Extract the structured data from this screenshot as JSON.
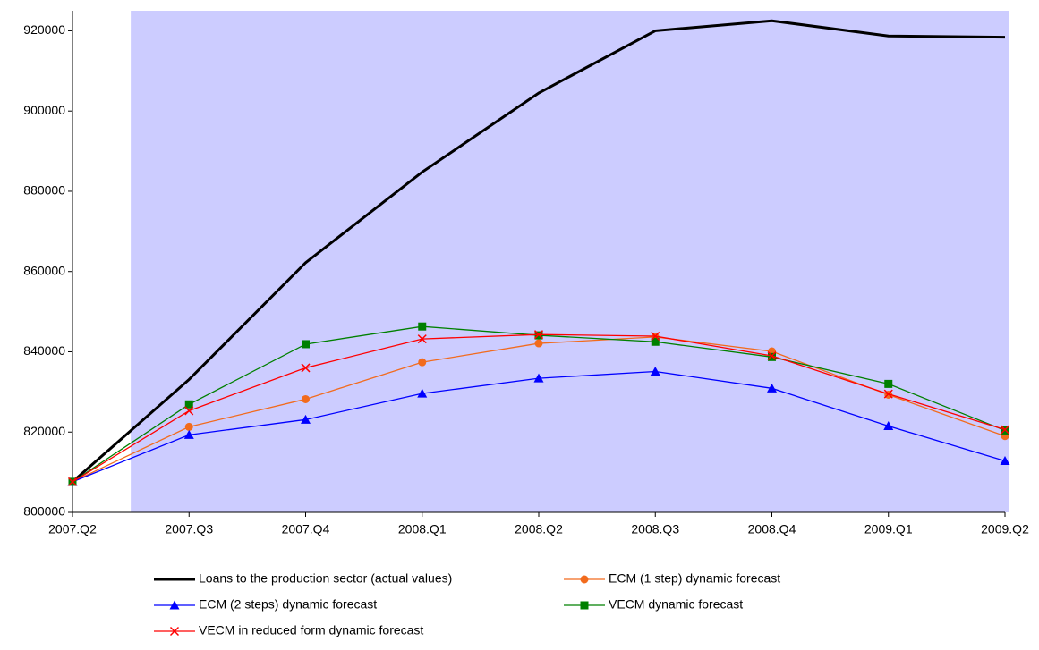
{
  "chart_data": {
    "type": "line",
    "categories": [
      "2007.Q2",
      "2007.Q3",
      "2007.Q4",
      "2008.Q1",
      "2008.Q2",
      "2008.Q3",
      "2008.Q4",
      "2009.Q1",
      "2009.Q2"
    ],
    "ylim": [
      800000,
      925000
    ],
    "yticks": [
      800000,
      820000,
      840000,
      860000,
      880000,
      900000,
      920000
    ],
    "background": "#ccccff",
    "series": [
      {
        "name": "Loans to the production sector (actual values)",
        "color": "#000000",
        "marker": "none",
        "width": 3,
        "values": [
          807600,
          833100,
          862200,
          884800,
          904500,
          920000,
          922500,
          918700,
          918400
        ]
      },
      {
        "name": "ECM (1 step) dynamic forecast",
        "color": "#f26b1d",
        "marker": "circle",
        "width": 1.3,
        "values": [
          807600,
          821300,
          828200,
          837400,
          842100,
          843700,
          840100,
          829300,
          819000
        ]
      },
      {
        "name": "ECM (2 steps) dynamic forecast",
        "color": "#0000ff",
        "marker": "triangle",
        "width": 1.3,
        "values": [
          807600,
          819300,
          823100,
          829600,
          833400,
          835100,
          830900,
          821500,
          812800
        ]
      },
      {
        "name": "VECM dynamic forecast",
        "color": "#008000",
        "marker": "square",
        "width": 1.3,
        "values": [
          807600,
          826900,
          841900,
          846300,
          844100,
          842500,
          838700,
          832000,
          820400
        ]
      },
      {
        "name": "VECM in reduced form dynamic forecast",
        "color": "#ff0000",
        "marker": "x",
        "width": 1.3,
        "values": [
          807600,
          825300,
          836000,
          843200,
          844300,
          843900,
          839000,
          829500,
          820600
        ]
      }
    ]
  }
}
